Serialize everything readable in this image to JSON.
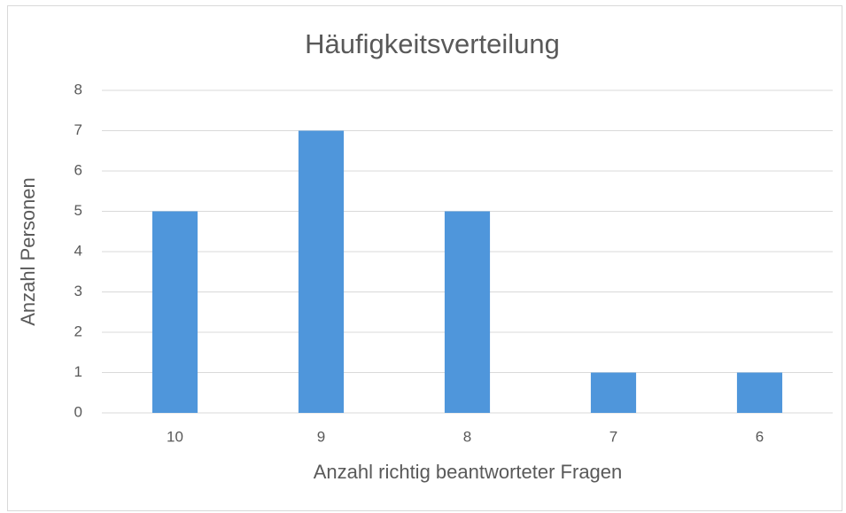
{
  "chart_data": {
    "type": "bar",
    "title": "Häufigkeitsverteilung",
    "x_label": "Anzahl richtig beantworteter Fragen",
    "y_label": "Anzahl Personen",
    "categories": [
      "10",
      "9",
      "8",
      "7",
      "6"
    ],
    "values": [
      5,
      7,
      5,
      1,
      1
    ],
    "color": "#4f96db",
    "ylim": [
      0,
      8
    ],
    "yticks": [
      0,
      1,
      2,
      3,
      4,
      5,
      6,
      7,
      8
    ],
    "grid": true
  }
}
